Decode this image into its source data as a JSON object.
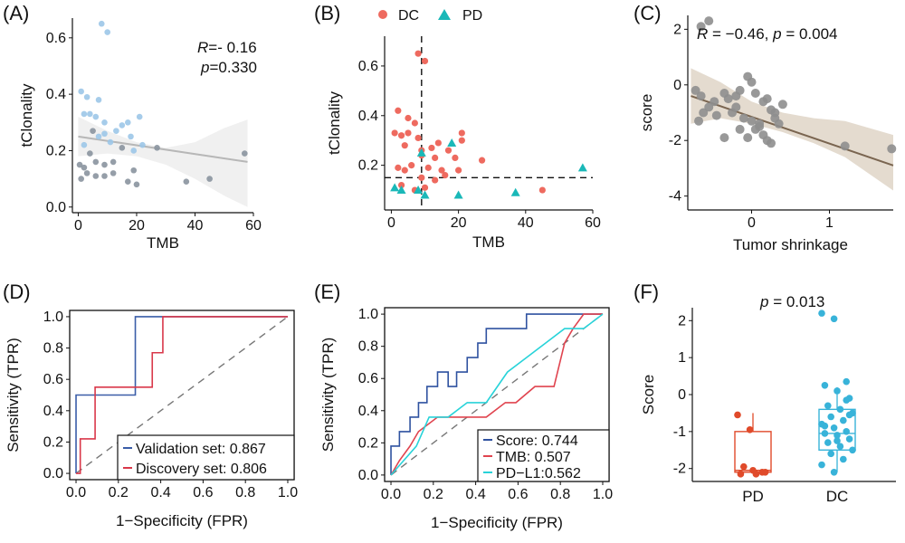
{
  "figure": {
    "panels": [
      {
        "id": "A",
        "label": "(A)"
      },
      {
        "id": "B",
        "label": "(B)"
      },
      {
        "id": "C",
        "label": "(C)"
      },
      {
        "id": "D",
        "label": "(D)"
      },
      {
        "id": "E",
        "label": "(E)"
      },
      {
        "id": "F",
        "label": "(F)"
      }
    ]
  },
  "colors": {
    "dc": "#ee6a5f",
    "pd": "#1ab8b8",
    "grey_point": "#8a949e",
    "blue_point": "#9cc7e8",
    "score_point": "#8e8e8e",
    "validation": "#3a5da8",
    "discovery": "#d9384a",
    "score_roc": "#2f52a0",
    "tmb_roc": "#e0444f",
    "pdl1_roc": "#28d3d9",
    "box_pd": "#e04a2a",
    "box_dc": "#38b3d9",
    "brown_fit": "#7a6550",
    "brown_band": "#cdbda7"
  },
  "chart_data": [
    {
      "id": "A",
      "type": "scatter",
      "xlabel": "TMB",
      "ylabel": "tClonality",
      "xlim": [
        -2,
        60
      ],
      "ylim": [
        -0.02,
        0.67
      ],
      "xticks": [
        "0",
        "20",
        "40",
        "60"
      ],
      "yticks": [
        "0.0",
        "0.2",
        "0.4",
        "0.6"
      ],
      "annotation": {
        "r_label": "R",
        "r_value": "=- 0.16",
        "p_label": "p",
        "p_value": "=0.330"
      },
      "fit": {
        "x": [
          0,
          58
        ],
        "y": [
          0.25,
          0.16
        ]
      },
      "band": {
        "x": [
          0,
          10,
          20,
          30,
          40,
          50,
          58
        ],
        "lower": [
          0.18,
          0.19,
          0.18,
          0.15,
          0.1,
          0.04,
          0.0
        ],
        "upper": [
          0.32,
          0.27,
          0.23,
          0.21,
          0.23,
          0.28,
          0.31
        ]
      },
      "points": [
        {
          "x": 8,
          "y": 0.65,
          "tone": "blue"
        },
        {
          "x": 10,
          "y": 0.62,
          "tone": "blue"
        },
        {
          "x": 1,
          "y": 0.41,
          "tone": "blue"
        },
        {
          "x": 3,
          "y": 0.39,
          "tone": "blue"
        },
        {
          "x": 2,
          "y": 0.33,
          "tone": "blue"
        },
        {
          "x": 4,
          "y": 0.33,
          "tone": "blue"
        },
        {
          "x": 7,
          "y": 0.38,
          "tone": "blue"
        },
        {
          "x": 6,
          "y": 0.32,
          "tone": "blue"
        },
        {
          "x": 9,
          "y": 0.3,
          "tone": "blue"
        },
        {
          "x": 15,
          "y": 0.29,
          "tone": "blue"
        },
        {
          "x": 17,
          "y": 0.3,
          "tone": "blue"
        },
        {
          "x": 21,
          "y": 0.32,
          "tone": "blue"
        },
        {
          "x": 7,
          "y": 0.25,
          "tone": "blue"
        },
        {
          "x": 9,
          "y": 0.26,
          "tone": "blue"
        },
        {
          "x": 13,
          "y": 0.27,
          "tone": "blue"
        },
        {
          "x": 18,
          "y": 0.25,
          "tone": "blue"
        },
        {
          "x": 2,
          "y": 0.22,
          "tone": "blue"
        },
        {
          "x": 11,
          "y": 0.23,
          "tone": "blue"
        },
        {
          "x": 19,
          "y": 0.2,
          "tone": "blue"
        },
        {
          "x": 22,
          "y": 0.22,
          "tone": "blue"
        },
        {
          "x": 27,
          "y": 0.21,
          "tone": "grey"
        },
        {
          "x": 4,
          "y": 0.19,
          "tone": "grey"
        },
        {
          "x": 0.5,
          "y": 0.15,
          "tone": "grey"
        },
        {
          "x": 2,
          "y": 0.14,
          "tone": "grey"
        },
        {
          "x": 6,
          "y": 0.16,
          "tone": "grey"
        },
        {
          "x": 9,
          "y": 0.15,
          "tone": "grey"
        },
        {
          "x": 12,
          "y": 0.16,
          "tone": "grey"
        },
        {
          "x": 3,
          "y": 0.12,
          "tone": "grey"
        },
        {
          "x": 6,
          "y": 0.11,
          "tone": "grey"
        },
        {
          "x": 9,
          "y": 0.11,
          "tone": "grey"
        },
        {
          "x": 12,
          "y": 0.12,
          "tone": "grey"
        },
        {
          "x": 19,
          "y": 0.13,
          "tone": "grey"
        },
        {
          "x": 1,
          "y": 0.1,
          "tone": "grey"
        },
        {
          "x": 17,
          "y": 0.09,
          "tone": "grey"
        },
        {
          "x": 20,
          "y": 0.08,
          "tone": "grey"
        },
        {
          "x": 37,
          "y": 0.09,
          "tone": "grey"
        },
        {
          "x": 45,
          "y": 0.1,
          "tone": "grey"
        },
        {
          "x": 57,
          "y": 0.19,
          "tone": "grey"
        },
        {
          "x": 5,
          "y": 0.27,
          "tone": "grey"
        },
        {
          "x": 15,
          "y": 0.21,
          "tone": "grey"
        }
      ]
    },
    {
      "id": "B",
      "type": "scatter",
      "xlabel": "TMB",
      "ylabel": "tClonality",
      "xlim": [
        -2,
        60
      ],
      "ylim": [
        0.02,
        0.72
      ],
      "xticks": [
        "0",
        "20",
        "40",
        "60"
      ],
      "yticks": [
        "0.2",
        "0.4",
        "0.6"
      ],
      "legend": [
        "DC",
        "PD"
      ],
      "legend_position": "top",
      "cutoff": {
        "x": 9,
        "y": 0.15
      },
      "series": [
        {
          "name": "DC",
          "shape": "circle",
          "x": [
            8,
            10,
            2,
            5,
            7,
            1,
            3,
            5,
            8,
            4,
            9,
            12,
            14,
            17,
            19,
            21,
            21,
            9,
            13,
            27,
            2,
            4,
            6,
            11,
            15,
            3,
            7,
            10,
            13,
            45,
            16,
            20,
            9
          ],
          "y": [
            0.65,
            0.62,
            0.42,
            0.39,
            0.37,
            0.33,
            0.32,
            0.33,
            0.31,
            0.28,
            0.26,
            0.27,
            0.29,
            0.26,
            0.23,
            0.33,
            0.3,
            0.24,
            0.23,
            0.22,
            0.19,
            0.18,
            0.2,
            0.19,
            0.18,
            0.12,
            0.1,
            0.11,
            0.14,
            0.1,
            0.16,
            0.18,
            0.15
          ]
        },
        {
          "name": "PD",
          "shape": "triangle",
          "x": [
            1,
            3,
            8,
            18,
            10,
            20,
            37,
            57,
            9
          ],
          "y": [
            0.11,
            0.1,
            0.1,
            0.29,
            0.08,
            0.08,
            0.09,
            0.19,
            0.25
          ]
        }
      ]
    },
    {
      "id": "C",
      "type": "scatter",
      "xlabel": "Tumor shrinkage",
      "ylabel": "score",
      "xlim": [
        -0.82,
        1.82
      ],
      "ylim": [
        -4.5,
        2.5
      ],
      "xticks": [
        "0",
        "1"
      ],
      "xtick_values": [
        0,
        1
      ],
      "yticks": [
        "-4",
        "-2",
        "0",
        "2"
      ],
      "ytick_values": [
        -4,
        -2,
        0,
        2
      ],
      "annotation": {
        "r_label": "R",
        "r_value": " = −0.46, ",
        "p_label": "p",
        "p_value": " = 0.004"
      },
      "fit": {
        "x": [
          -0.78,
          1.82
        ],
        "y": [
          -0.4,
          -2.9
        ]
      },
      "band": {
        "x": [
          -0.78,
          -0.4,
          0,
          0.4,
          0.8,
          1.2,
          1.82
        ],
        "lower": [
          -1.4,
          -1.2,
          -1.4,
          -1.7,
          -2.1,
          -2.6,
          -3.8
        ],
        "upper": [
          0.6,
          0.1,
          -0.6,
          -1.0,
          -1.2,
          -1.3,
          -1.8
        ]
      },
      "points": {
        "x": [
          -0.65,
          -0.55,
          -0.72,
          -0.65,
          -0.55,
          -0.48,
          -0.62,
          -0.68,
          -0.35,
          -0.3,
          -0.2,
          -0.15,
          -0.05,
          0.0,
          0.05,
          0.15,
          0.2,
          0.25,
          0.3,
          -0.25,
          -0.1,
          0.0,
          0.1,
          -0.15,
          0.05,
          0.15,
          -0.05,
          0.2,
          0.35,
          0.4,
          -0.45,
          -0.35,
          0.1,
          0.25,
          1.2,
          1.8,
          0.3,
          -0.2
        ],
        "y": [
          2.1,
          2.3,
          -0.2,
          -0.4,
          -0.8,
          -0.6,
          -1.0,
          -1.3,
          -0.3,
          -0.5,
          -0.4,
          -0.2,
          0.3,
          0.1,
          -0.3,
          -0.6,
          -0.5,
          -0.9,
          -1.0,
          -1.0,
          -1.2,
          -1.3,
          -1.4,
          -1.6,
          -1.6,
          -1.8,
          -1.9,
          -2.0,
          -1.4,
          -0.7,
          -1.1,
          -1.9,
          -1.5,
          -2.1,
          -2.2,
          -2.3,
          -1.2,
          -0.8
        ]
      }
    },
    {
      "id": "D",
      "type": "line",
      "xlabel": "1−Specificity (FPR)",
      "ylabel": "Sensitivity (TPR)",
      "xlim": [
        -0.03,
        1.03
      ],
      "ylim": [
        -0.04,
        1.04
      ],
      "xticks": [
        "0.0",
        "0.2",
        "0.4",
        "0.6",
        "0.8",
        "1.0"
      ],
      "yticks": [
        "0.0",
        "0.2",
        "0.4",
        "0.6",
        "0.8",
        "1.0"
      ],
      "legend_position": "bottom-right",
      "series": [
        {
          "name": "Validation set: 0.867",
          "x": [
            0,
            0,
            0.1,
            0.1,
            0.28,
            0.28,
            1.0
          ],
          "y": [
            0,
            0.5,
            0.5,
            0.5,
            0.5,
            1.0,
            1.0
          ]
        },
        {
          "name": "Discovery set: 0.806",
          "x": [
            0,
            0.02,
            0.02,
            0.09,
            0.09,
            0.27,
            0.27,
            0.36,
            0.36,
            0.41,
            0.41,
            1.0
          ],
          "y": [
            0,
            0,
            0.22,
            0.22,
            0.55,
            0.55,
            0.55,
            0.55,
            0.77,
            0.77,
            1.0,
            1.0
          ]
        }
      ]
    },
    {
      "id": "E",
      "type": "line",
      "xlabel": "1−Specificity (FPR)",
      "ylabel": "Sensitivity (TPR)",
      "xlim": [
        -0.03,
        1.03
      ],
      "ylim": [
        -0.04,
        1.04
      ],
      "xticks": [
        "0.0",
        "0.2",
        "0.4",
        "0.6",
        "0.8",
        "1.0"
      ],
      "yticks": [
        "0.0",
        "0.2",
        "0.4",
        "0.6",
        "0.8",
        "1.0"
      ],
      "legend_position": "bottom-right",
      "series": [
        {
          "name": "Score: 0.744",
          "x": [
            0,
            0,
            0.04,
            0.04,
            0.09,
            0.09,
            0.13,
            0.13,
            0.17,
            0.17,
            0.22,
            0.22,
            0.27,
            0.27,
            0.31,
            0.31,
            0.36,
            0.36,
            0.41,
            0.41,
            0.45,
            0.45,
            0.64,
            0.64,
            0.73,
            0.73,
            0.86,
            0.86,
            1.0
          ],
          "y": [
            0,
            0.18,
            0.18,
            0.27,
            0.27,
            0.36,
            0.36,
            0.45,
            0.45,
            0.55,
            0.55,
            0.64,
            0.64,
            0.55,
            0.55,
            0.64,
            0.64,
            0.73,
            0.73,
            0.82,
            0.82,
            0.91,
            0.91,
            1.0,
            1.0,
            1.0,
            1.0,
            1.0,
            1.0
          ]
        },
        {
          "name": "TMB: 0.507",
          "x": [
            0,
            0.04,
            0.09,
            0.13,
            0.22,
            0.31,
            0.45,
            0.54,
            0.59,
            0.68,
            0.77,
            0.82,
            0.86,
            0.91,
            1.0
          ],
          "y": [
            0,
            0.09,
            0.18,
            0.27,
            0.36,
            0.36,
            0.36,
            0.45,
            0.45,
            0.55,
            0.55,
            0.82,
            0.91,
            1.0,
            1.0
          ]
        },
        {
          "name": "PD−L1:0.562",
          "x": [
            0,
            0.06,
            0.12,
            0.18,
            0.27,
            0.36,
            0.45,
            0.55,
            0.64,
            0.73,
            0.82,
            0.91,
            1.0
          ],
          "y": [
            0,
            0.09,
            0.18,
            0.36,
            0.36,
            0.45,
            0.45,
            0.64,
            0.73,
            0.82,
            0.91,
            0.91,
            1.0
          ]
        }
      ]
    },
    {
      "id": "F",
      "type": "box",
      "ylabel": "Score",
      "categories": [
        "PD",
        "DC"
      ],
      "ylim": [
        -2.35,
        2.35
      ],
      "yticks": [
        "-2",
        "-1",
        "0",
        "1",
        "2"
      ],
      "ytick_values": [
        -2,
        -1,
        0,
        1,
        2
      ],
      "annotation": {
        "p_label": "p",
        "p_value": " = 0.013"
      },
      "boxes": [
        {
          "category": "PD",
          "min": -2.1,
          "q1": -2.1,
          "median": -2.05,
          "q3": -1.0,
          "max": -0.5,
          "points": [
            -0.55,
            -0.95,
            -2.1,
            -2.15,
            -2.05,
            -2.1,
            -1.95,
            -2.15
          ]
        },
        {
          "category": "DC",
          "min": -2.1,
          "q1": -1.5,
          "median": -1.05,
          "q3": -0.4,
          "max": 0.2,
          "points": [
            2.2,
            2.05,
            0.35,
            0.25,
            0.1,
            -0.1,
            -0.3,
            -0.4,
            -0.5,
            -0.6,
            -0.7,
            -0.8,
            -0.9,
            -1.0,
            -1.05,
            -1.1,
            -1.2,
            -1.3,
            -1.4,
            -1.5,
            -1.6,
            -1.75,
            -1.9,
            -2.1,
            -0.15,
            -0.85,
            -1.25,
            -0.55
          ]
        }
      ]
    }
  ]
}
